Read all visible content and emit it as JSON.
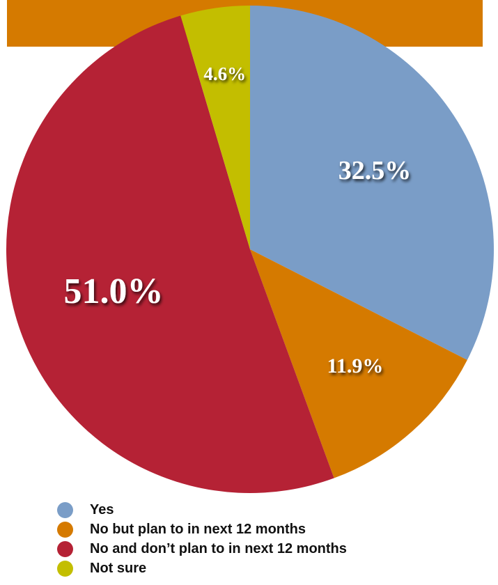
{
  "chart_data": {
    "type": "pie",
    "title": "",
    "header_band_color": "#D57A00",
    "slices": [
      {
        "label": "Yes",
        "value": 32.5,
        "display": "32.5%",
        "color": "#7A9DC7"
      },
      {
        "label": "No but plan to in next 12 months",
        "value": 11.9,
        "display": "11.9%",
        "color": "#D57A00"
      },
      {
        "label": "No and don’t plan to in next 12 months",
        "value": 51.0,
        "display": "51.0%",
        "color": "#B52235"
      },
      {
        "label": "Not sure",
        "value": 4.6,
        "display": "4.6%",
        "color": "#C3BE00"
      }
    ],
    "legend_position": "bottom-left"
  }
}
